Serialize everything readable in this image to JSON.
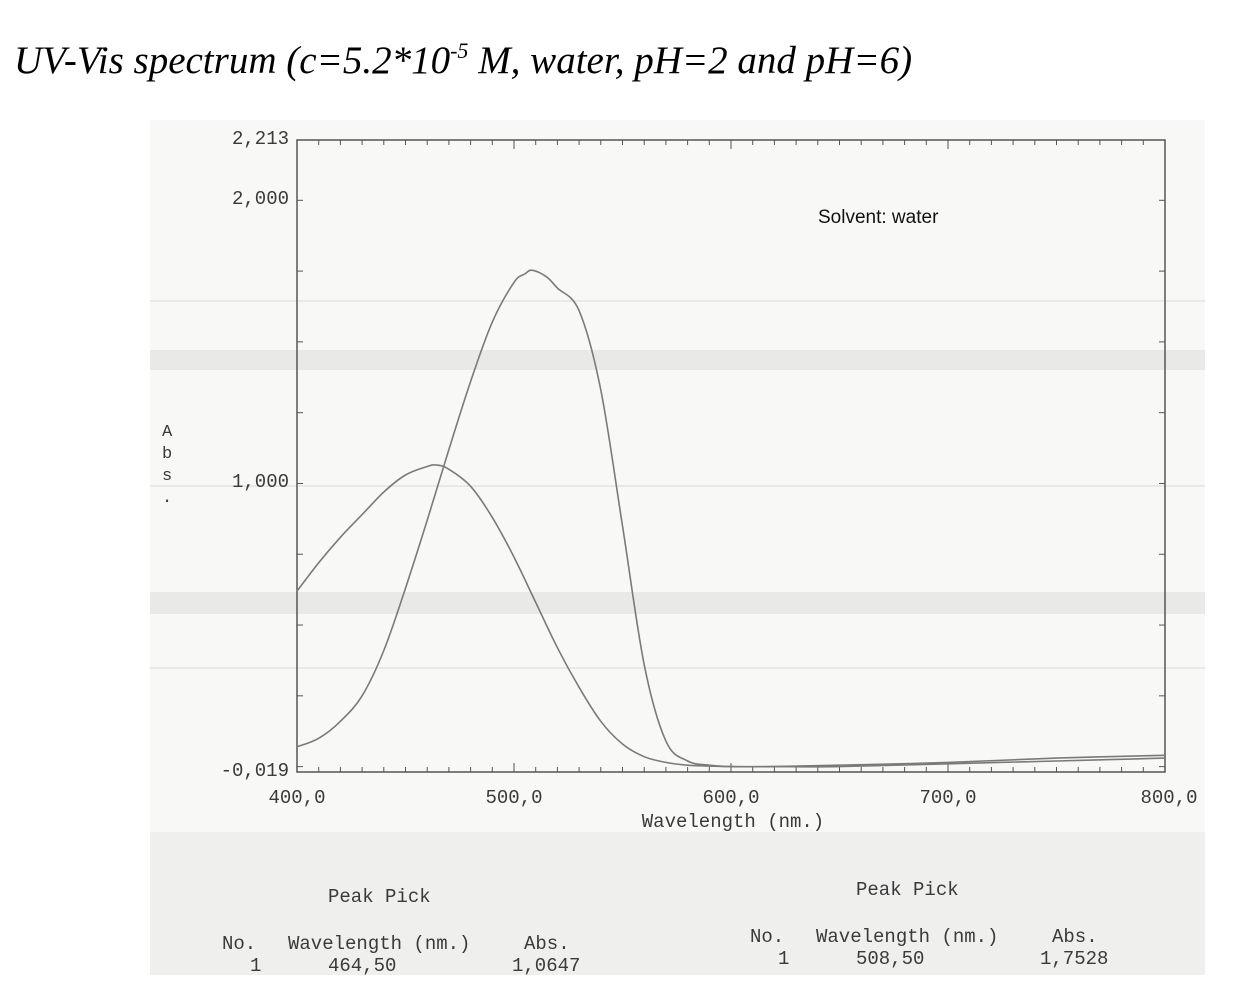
{
  "title": {
    "text_prefix": "UV-Vis spectrum (c=5.2*10",
    "exponent": "-5",
    "text_suffix": " M, water, pH=2 and pH=6)"
  },
  "chart_data": {
    "type": "line",
    "annotation": "Solvent: water",
    "xlabel": "Wavelength (nm.)",
    "ylabel": "Abs.",
    "xlim": [
      400,
      800
    ],
    "ylim": [
      -0.019,
      2.213
    ],
    "x_tick_labels": [
      "400,0",
      "500,0",
      "600,0",
      "700,0",
      "800,0"
    ],
    "x_ticks": [
      400,
      500,
      600,
      700,
      800
    ],
    "y_tick_labels": [
      "2,213",
      "2,000",
      "1,000",
      "-0,019"
    ],
    "y_ticks": [
      2.213,
      2.0,
      1.0,
      -0.019
    ],
    "series": [
      {
        "x": [
          400,
          410,
          420,
          430,
          440,
          450,
          460,
          464.5,
          470,
          480,
          490,
          500,
          510,
          520,
          530,
          540,
          550,
          560,
          570,
          580,
          590,
          600,
          620,
          650,
          700,
          750,
          800
        ],
        "y": [
          0.62,
          0.72,
          0.81,
          0.89,
          0.97,
          1.03,
          1.06,
          1.065,
          1.05,
          0.99,
          0.88,
          0.74,
          0.58,
          0.42,
          0.28,
          0.16,
          0.08,
          0.035,
          0.015,
          0.005,
          0.002,
          0.0,
          0.0,
          0.005,
          0.015,
          0.03,
          0.04
        ]
      },
      {
        "x": [
          400,
          410,
          420,
          430,
          440,
          450,
          460,
          470,
          480,
          490,
          500,
          505,
          508.5,
          515,
          520,
          530,
          540,
          550,
          560,
          570,
          580,
          590,
          600,
          620,
          650,
          700,
          750,
          800
        ],
        "y": [
          0.07,
          0.1,
          0.16,
          0.25,
          0.41,
          0.63,
          0.87,
          1.12,
          1.36,
          1.57,
          1.71,
          1.74,
          1.753,
          1.73,
          1.69,
          1.61,
          1.33,
          0.85,
          0.36,
          0.09,
          0.02,
          0.005,
          0.0,
          0.0,
          0.0,
          0.01,
          0.02,
          0.03
        ]
      }
    ]
  },
  "peak_tables": [
    {
      "heading": "Peak Pick",
      "col_no": "No.",
      "col_wavelength": "Wavelength (nm.)",
      "col_abs": "Abs.",
      "rows": [
        {
          "no": "1",
          "wavelength": "464,50",
          "abs": "1,0647"
        }
      ]
    },
    {
      "heading": "Peak Pick",
      "col_no": "No.",
      "col_wavelength": "Wavelength (nm.)",
      "col_abs": "Abs.",
      "rows": [
        {
          "no": "1",
          "wavelength": "508,50",
          "abs": "1,7528"
        }
      ]
    }
  ],
  "colors": {
    "curve": "#7a7a7a",
    "frame": "#555555",
    "text": "#3a3a3a"
  }
}
